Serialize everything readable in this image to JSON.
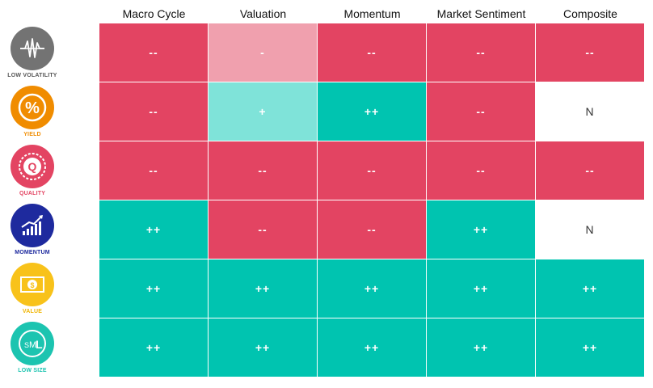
{
  "chart_data": {
    "type": "table",
    "columns": [
      "Macro Cycle",
      "Valuation",
      "Momentum",
      "Market Sentiment",
      "Composite"
    ],
    "rows": [
      {
        "factor": "LOW VOLATILITY",
        "icon": "low-volatility-icon",
        "icon_color": "#737373",
        "label_color": "#555555",
        "values": [
          "--",
          "-",
          "--",
          "--",
          "--"
        ],
        "colors": [
          "#e34462",
          "#f0a0ae",
          "#e34462",
          "#e34462",
          "#e34462"
        ]
      },
      {
        "factor": "YIELD",
        "icon": "percent-icon",
        "icon_color": "#f08c00",
        "label_color": "#f08c00",
        "values": [
          "--",
          "+",
          "++",
          "--",
          "N"
        ],
        "colors": [
          "#e34462",
          "#7fe3d9",
          "#00c4b0",
          "#e34462",
          "#ffffff"
        ]
      },
      {
        "factor": "QUALITY",
        "icon": "quality-seal-icon",
        "icon_color": "#e34462",
        "label_color": "#e34462",
        "values": [
          "--",
          "--",
          "--",
          "--",
          "--"
        ],
        "colors": [
          "#e34462",
          "#e34462",
          "#e34462",
          "#e34462",
          "#e34462"
        ]
      },
      {
        "factor": "MOMENTUM",
        "icon": "trend-chart-icon",
        "icon_color": "#1e2a9e",
        "label_color": "#1e2a9e",
        "values": [
          "++",
          "--",
          "--",
          "++",
          "N"
        ],
        "colors": [
          "#00c4b0",
          "#e34462",
          "#e34462",
          "#00c4b0",
          "#ffffff"
        ]
      },
      {
        "factor": "VALUE",
        "icon": "banknote-icon",
        "icon_color": "#f8c21a",
        "label_color": "#f0b400",
        "values": [
          "++",
          "++",
          "++",
          "++",
          "++"
        ],
        "colors": [
          "#00c4b0",
          "#00c4b0",
          "#00c4b0",
          "#00c4b0",
          "#00c4b0"
        ]
      },
      {
        "factor": "LOW SIZE",
        "icon": "size-sml-icon",
        "icon_color": "#1cc4b0",
        "label_color": "#1cc4b0",
        "values": [
          "++",
          "++",
          "++",
          "++",
          "++"
        ],
        "colors": [
          "#00c4b0",
          "#00c4b0",
          "#00c4b0",
          "#00c4b0",
          "#00c4b0"
        ]
      }
    ]
  }
}
